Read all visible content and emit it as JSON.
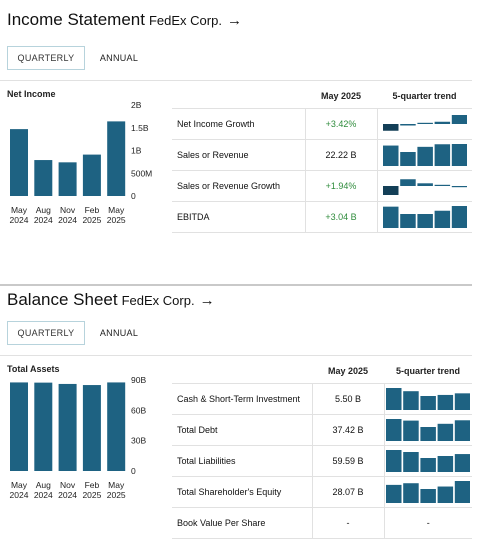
{
  "colors": {
    "bar": "#1e6282",
    "bar_dark": "#133f57",
    "positive": "#2f8c3c",
    "tab_border": "#b7d3dc"
  },
  "income": {
    "title": "Income Statement",
    "company": "FedEx Corp.",
    "arrow": "→",
    "tabs": [
      "QUARTERLY",
      "ANNUAL"
    ],
    "active_tab": 0,
    "chart": {
      "title": "Net Income",
      "y_ticks": [
        "2B",
        "1.5B",
        "1B",
        "500M",
        "0"
      ],
      "x_labels": [
        [
          "May",
          "2024"
        ],
        [
          "Aug",
          "2024"
        ],
        [
          "Nov",
          "2024"
        ],
        [
          "Feb",
          "2025"
        ],
        [
          "May",
          "2025"
        ]
      ]
    },
    "chart_data": {
      "type": "bar",
      "title": "Net Income",
      "categories": [
        "May 2024",
        "Aug 2024",
        "Nov 2024",
        "Feb 2025",
        "May 2025"
      ],
      "values": [
        1.47,
        0.79,
        0.74,
        0.91,
        1.64
      ],
      "unit": "B",
      "ylim": [
        0,
        2
      ]
    },
    "table": {
      "col_value": "May 2025",
      "col_trend": "5-quarter trend",
      "rows": [
        {
          "label": "Net Income Growth",
          "value": "+3.42%",
          "positive": true,
          "trend_type": "growth",
          "trend": [
            -0.45,
            -0.1,
            0.0,
            0.15,
            0.6
          ]
        },
        {
          "label": "Sales or Revenue",
          "value": "22.22 B",
          "positive": false,
          "trend_type": "bars",
          "trend": [
            22.1,
            21.6,
            22.0,
            22.2,
            22.22
          ]
        },
        {
          "label": "Sales or Revenue Growth",
          "value": "+1.94%",
          "positive": true,
          "trend_type": "growth",
          "trend": [
            -1.0,
            0.75,
            0.3,
            0.08,
            -0.05
          ]
        },
        {
          "label": "EBITDA",
          "value": "+3.04 B",
          "positive": true,
          "trend_type": "bars",
          "trend": [
            3.0,
            2.55,
            2.55,
            2.75,
            3.04
          ]
        }
      ]
    }
  },
  "balance": {
    "title": "Balance Sheet",
    "company": "FedEx Corp.",
    "arrow": "→",
    "tabs": [
      "QUARTERLY",
      "ANNUAL"
    ],
    "active_tab": 0,
    "chart": {
      "title": "Total Assets",
      "y_ticks": [
        "90B",
        "60B",
        "30B",
        "0"
      ],
      "x_labels": [
        [
          "May",
          "2024"
        ],
        [
          "Aug",
          "2024"
        ],
        [
          "Nov",
          "2024"
        ],
        [
          "Feb",
          "2025"
        ],
        [
          "May",
          "2025"
        ]
      ]
    },
    "chart_data": {
      "type": "bar",
      "title": "Total Assets",
      "categories": [
        "May 2024",
        "Aug 2024",
        "Nov 2024",
        "Feb 2025",
        "May 2025"
      ],
      "values": [
        87.6,
        87.4,
        86.1,
        85.0,
        87.6
      ],
      "unit": "B",
      "ylim": [
        0,
        90
      ]
    },
    "table": {
      "col_value": "May 2025",
      "col_trend": "5-quarter trend",
      "rows": [
        {
          "label": "Cash & Short-Term Investment",
          "value": "5.50 B",
          "trend_type": "bars",
          "trend": [
            6.5,
            5.9,
            5.0,
            5.2,
            5.5
          ]
        },
        {
          "label": "Total Debt",
          "value": "37.42 B",
          "trend_type": "bars",
          "trend": [
            37.5,
            37.4,
            37.0,
            37.2,
            37.42
          ]
        },
        {
          "label": "Total Liabilities",
          "value": "59.59 B",
          "trend_type": "bars",
          "trend": [
            60.2,
            59.9,
            59.0,
            59.3,
            59.59
          ]
        },
        {
          "label": "Total Shareholder's Equity",
          "value": "28.07 B",
          "trend_type": "bars",
          "trend": [
            27.6,
            27.8,
            27.1,
            27.4,
            28.07
          ]
        },
        {
          "label": "Book Value Per Share",
          "value": "-",
          "trend_type": "none",
          "trend_text": "-",
          "trend": []
        }
      ]
    }
  }
}
